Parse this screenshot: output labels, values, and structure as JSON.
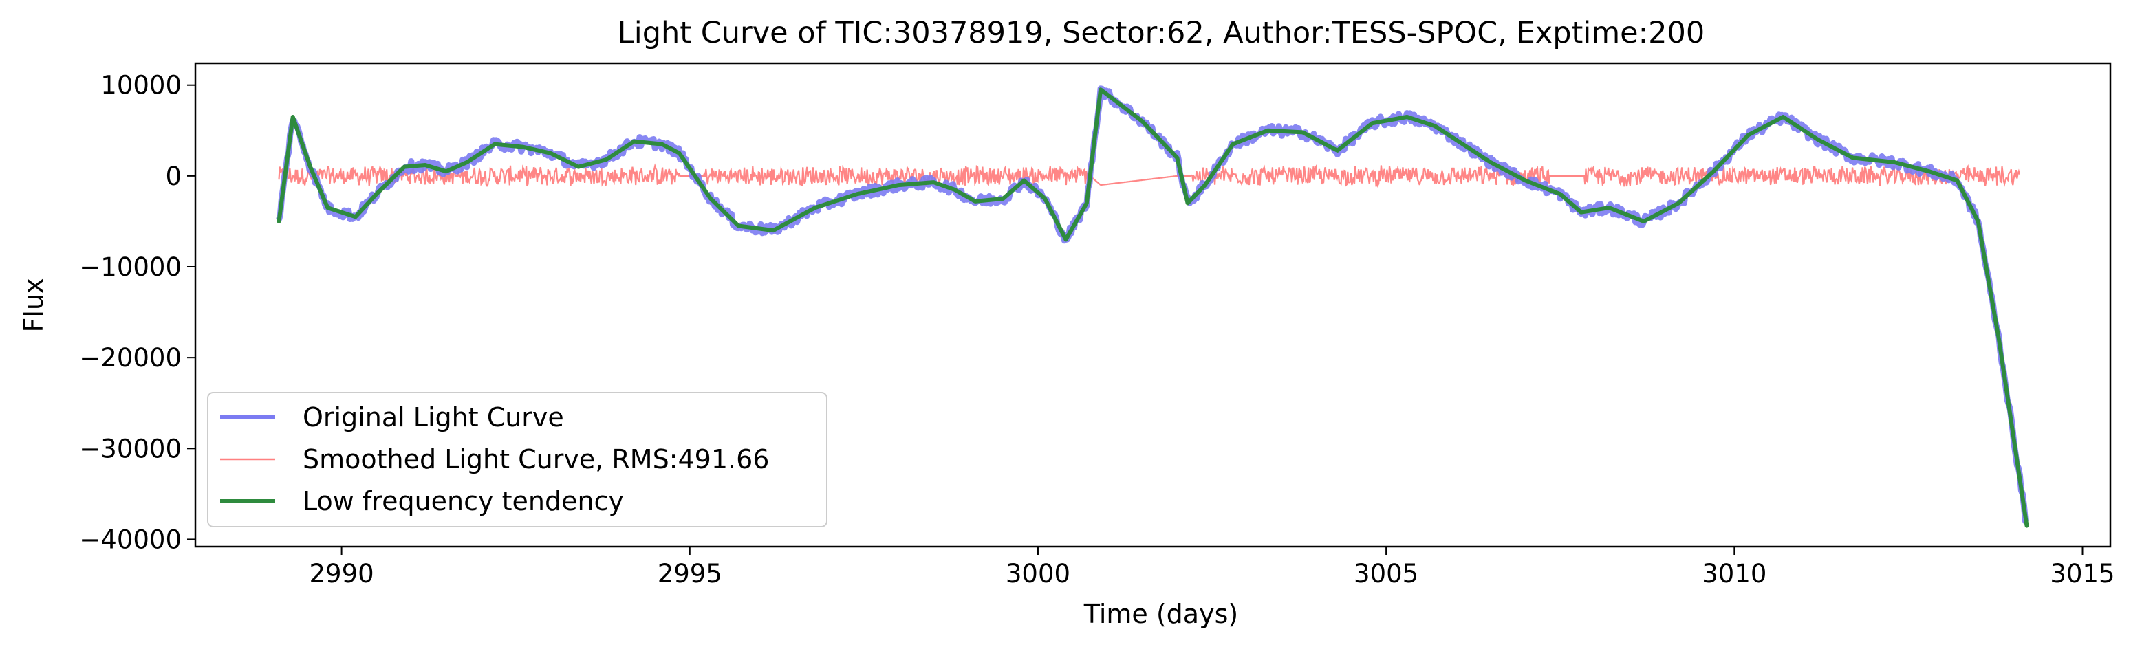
{
  "chart_data": {
    "type": "line",
    "title": "Light Curve of TIC:30378919, Sector:62, Author:TESS-SPOC, Exptime:200",
    "xlabel": "Time (days)",
    "ylabel": "Flux",
    "xlim": [
      2987.9,
      3015.4
    ],
    "ylim": [
      -40800,
      12400
    ],
    "xticks": [
      2990,
      2995,
      3000,
      3005,
      3010,
      3015
    ],
    "yticks": [
      10000,
      0,
      -10000,
      -20000,
      -30000,
      -40000
    ],
    "xtick_labels": [
      "2990",
      "2995",
      "3000",
      "3005",
      "3010",
      "3015"
    ],
    "ytick_labels": [
      "10000",
      "0",
      "−10000",
      "−20000",
      "−30000",
      "−40000"
    ],
    "grid": false,
    "legend_position": "lower-left",
    "series": [
      {
        "name": "Original Light Curve",
        "color": "#7b7bf2",
        "style": "thick line",
        "x": [
          2989.1,
          2989.3,
          2989.55,
          2989.8,
          2990.2,
          2990.5,
          2990.9,
          2991.2,
          2991.5,
          2991.8,
          2992.2,
          2992.6,
          2993.0,
          2993.4,
          2993.8,
          2994.2,
          2994.6,
          2994.85,
          2995.3,
          2995.7,
          2996.2,
          2996.8,
          2997.4,
          2998.0,
          2998.5,
          2998.8,
          2999.1,
          2999.5,
          2999.8,
          3000.1,
          3000.4,
          3000.7,
          3000.9,
          3001.5,
          3002.0,
          3002.15,
          3002.4,
          3002.8,
          3003.3,
          3003.8,
          3004.3,
          3004.8,
          3005.3,
          3005.7,
          3006.1,
          3006.5,
          3007.0,
          3007.5,
          3007.8,
          3008.2,
          3008.7,
          3009.2,
          3009.7,
          3010.2,
          3010.7,
          3011.2,
          3011.7,
          3012.3,
          3012.8,
          3013.2,
          3013.5,
          3013.8,
          3014.2
        ],
        "y": [
          -5000,
          6500,
          1000,
          -3500,
          -4500,
          -2000,
          1000,
          1200,
          500,
          1500,
          3500,
          3200,
          2500,
          1000,
          1800,
          3800,
          3500,
          2500,
          -2500,
          -5500,
          -6000,
          -3500,
          -2000,
          -1000,
          -700,
          -1500,
          -2800,
          -2500,
          -500,
          -2500,
          -7000,
          -3000,
          9500,
          6000,
          2000,
          -3000,
          -1000,
          3500,
          5000,
          4800,
          2800,
          5800,
          6500,
          5500,
          3500,
          1500,
          -500,
          -2000,
          -4000,
          -3500,
          -5000,
          -3000,
          500,
          4500,
          6500,
          4000,
          2000,
          1500,
          500,
          -500,
          -5000,
          -18000,
          -38500
        ]
      },
      {
        "name": "Smoothed Light Curve, RMS:491.66",
        "color": "#ff8080",
        "style": "thin noisy line",
        "x": [
          2989.1,
          2994.85,
          2995.2,
          3000.75,
          3000.9,
          3002.0,
          3002.2,
          3007.35,
          3007.85,
          3014.1
        ],
        "y": [
          0,
          0,
          0,
          0,
          -1000,
          0,
          0,
          0,
          0,
          0
        ]
      },
      {
        "name": "Low frequency tendency",
        "color": "#2e8b3e",
        "style": "thick line",
        "x": [
          2989.1,
          2989.3,
          2989.55,
          2989.8,
          2990.2,
          2990.5,
          2990.9,
          2991.2,
          2991.5,
          2991.8,
          2992.2,
          2992.6,
          2993.0,
          2993.4,
          2993.8,
          2994.2,
          2994.6,
          2994.85,
          2995.3,
          2995.7,
          2996.2,
          2996.8,
          2997.4,
          2998.0,
          2998.5,
          2998.8,
          2999.1,
          2999.5,
          2999.8,
          3000.1,
          3000.4,
          3000.7,
          3000.9,
          3001.5,
          3002.0,
          3002.15,
          3002.4,
          3002.8,
          3003.3,
          3003.8,
          3004.3,
          3004.8,
          3005.3,
          3005.7,
          3006.1,
          3006.5,
          3007.0,
          3007.5,
          3007.8,
          3008.2,
          3008.7,
          3009.2,
          3009.7,
          3010.2,
          3010.7,
          3011.2,
          3011.7,
          3012.3,
          3012.8,
          3013.2,
          3013.5,
          3013.8,
          3014.2
        ],
        "y": [
          -5000,
          6500,
          1000,
          -3500,
          -4500,
          -2000,
          1000,
          1200,
          500,
          1500,
          3500,
          3200,
          2500,
          1000,
          1800,
          3800,
          3500,
          2500,
          -2500,
          -5500,
          -6000,
          -3500,
          -2000,
          -1000,
          -700,
          -1500,
          -2800,
          -2500,
          -500,
          -2500,
          -7000,
          -3000,
          9500,
          6000,
          2000,
          -3000,
          -1000,
          3500,
          5000,
          4800,
          2800,
          5800,
          6500,
          5500,
          3500,
          1500,
          -500,
          -2000,
          -4000,
          -3500,
          -5000,
          -3000,
          500,
          4500,
          6500,
          4000,
          2000,
          1500,
          500,
          -500,
          -5000,
          -18000,
          -38500
        ]
      }
    ]
  }
}
